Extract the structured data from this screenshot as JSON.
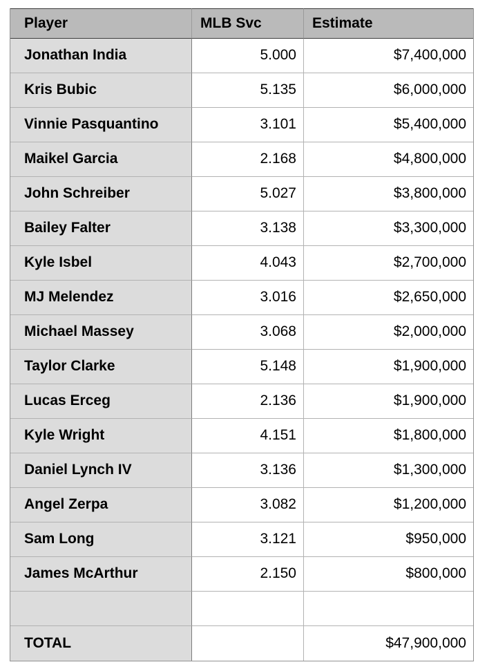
{
  "chart_data": {
    "type": "table",
    "columns": [
      "Player",
      "MLB Svc",
      "Estimate"
    ],
    "rows": [
      {
        "player": "Jonathan India",
        "svc": "5.000",
        "estimate": "$7,400,000"
      },
      {
        "player": "Kris Bubic",
        "svc": "5.135",
        "estimate": "$6,000,000"
      },
      {
        "player": "Vinnie Pasquantino",
        "svc": "3.101",
        "estimate": "$5,400,000"
      },
      {
        "player": "Maikel Garcia",
        "svc": "2.168",
        "estimate": "$4,800,000"
      },
      {
        "player": "John Schreiber",
        "svc": "5.027",
        "estimate": "$3,800,000"
      },
      {
        "player": "Bailey Falter",
        "svc": "3.138",
        "estimate": "$3,300,000"
      },
      {
        "player": "Kyle Isbel",
        "svc": "4.043",
        "estimate": "$2,700,000"
      },
      {
        "player": "MJ Melendez",
        "svc": "3.016",
        "estimate": "$2,650,000"
      },
      {
        "player": "Michael Massey",
        "svc": "3.068",
        "estimate": "$2,000,000"
      },
      {
        "player": "Taylor Clarke",
        "svc": "5.148",
        "estimate": "$1,900,000"
      },
      {
        "player": "Lucas Erceg",
        "svc": "2.136",
        "estimate": "$1,900,000"
      },
      {
        "player": "Kyle Wright",
        "svc": "4.151",
        "estimate": "$1,800,000"
      },
      {
        "player": "Daniel Lynch IV",
        "svc": "3.136",
        "estimate": "$1,300,000"
      },
      {
        "player": "Angel Zerpa",
        "svc": "3.082",
        "estimate": "$1,200,000"
      },
      {
        "player": "Sam Long",
        "svc": "3.121",
        "estimate": "$950,000"
      },
      {
        "player": "James McArthur",
        "svc": "2.150",
        "estimate": "$800,000"
      }
    ],
    "spacer_row": {
      "player": "",
      "svc": "",
      "estimate": ""
    },
    "total_row": {
      "label": "TOTAL",
      "svc": "",
      "estimate": "$47,900,000"
    }
  },
  "colors": {
    "header_background": "#bababa",
    "header_border": "#3d3d3d",
    "row_label_background": "#dcdcdc",
    "cell_background": "#ffffff",
    "grid_line": "#b2b2b2",
    "outer_border": "#929292",
    "text": "#000000"
  }
}
